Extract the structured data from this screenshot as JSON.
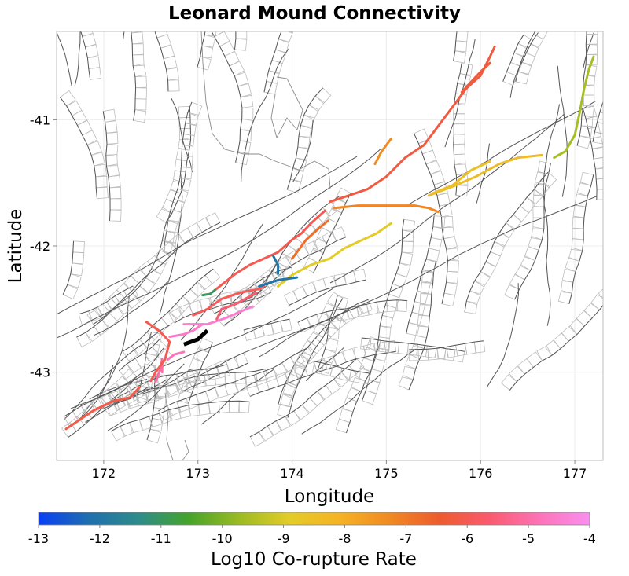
{
  "title": "Leonard Mound Connectivity",
  "xlabel": "Longitude",
  "ylabel": "Latitude",
  "x_ticks": [
    172,
    173,
    174,
    175,
    176,
    177
  ],
  "y_ticks": [
    -41,
    -42,
    -43
  ],
  "xlim": [
    171.5,
    177.3
  ],
  "ylim": [
    -43.7,
    -40.3
  ],
  "colorbar": {
    "label": "Log10 Co-rupture Rate",
    "ticks": [
      -13,
      -12,
      -11,
      -10,
      -9,
      -8,
      -7,
      -6,
      -5,
      -4
    ],
    "range": [
      -13,
      -4
    ],
    "stops": [
      "#0a3ef5",
      "#1f6fae",
      "#2e8c8a",
      "#46a32a",
      "#9bbb23",
      "#e3cc28",
      "#f5b324",
      "#f08a22",
      "#ee5b2e",
      "#fb5a6e",
      "#fd73b8",
      "#f88ff0"
    ]
  },
  "colors": {
    "background_fault": "#555555",
    "fault_box": "#bdbdbd",
    "coastline": "#8a8a8a",
    "target_fault": "#000000"
  },
  "chart_data": {
    "type": "map",
    "title": "Leonard Mound Connectivity",
    "xlabel": "Longitude",
    "ylabel": "Latitude",
    "target_fault": {
      "name": "Leonard Mound",
      "value_note": "target",
      "path": [
        [
          172.85,
          -42.78
        ],
        [
          173.0,
          -42.74
        ],
        [
          173.1,
          -42.67
        ]
      ]
    },
    "faults": [
      {
        "id": "f1",
        "log10_rate": -4.5,
        "path": [
          [
            172.85,
            -42.62
          ],
          [
            173.1,
            -42.62
          ],
          [
            173.3,
            -42.57
          ],
          [
            173.45,
            -42.52
          ],
          [
            173.58,
            -42.48
          ]
        ]
      },
      {
        "id": "f2",
        "log10_rate": -4.6,
        "path": [
          [
            172.7,
            -42.72
          ],
          [
            172.85,
            -42.7
          ],
          [
            172.95,
            -42.67
          ],
          [
            173.05,
            -42.62
          ]
        ]
      },
      {
        "id": "f3",
        "log10_rate": -4.8,
        "path": [
          [
            172.68,
            -42.9
          ],
          [
            172.75,
            -42.86
          ],
          [
            172.85,
            -42.84
          ]
        ]
      },
      {
        "id": "f4",
        "log10_rate": -5.0,
        "path": [
          [
            172.62,
            -42.9
          ],
          [
            172.62,
            -43.0
          ]
        ]
      },
      {
        "id": "f5",
        "log10_rate": -5.1,
        "path": [
          [
            172.55,
            -43.08
          ],
          [
            172.6,
            -42.98
          ],
          [
            172.62,
            -42.9
          ]
        ]
      },
      {
        "id": "f6",
        "log10_rate": -5.6,
        "path": [
          [
            173.2,
            -42.58
          ],
          [
            173.25,
            -42.5
          ],
          [
            173.4,
            -42.46
          ],
          [
            173.55,
            -42.4
          ],
          [
            173.62,
            -42.37
          ]
        ]
      },
      {
        "id": "f7",
        "log10_rate": -5.9,
        "path": [
          [
            172.95,
            -42.55
          ],
          [
            173.1,
            -42.5
          ],
          [
            173.25,
            -42.42
          ],
          [
            173.45,
            -42.37
          ],
          [
            173.65,
            -42.34
          ],
          [
            173.7,
            -42.32
          ]
        ]
      },
      {
        "id": "f8",
        "log10_rate": -6.0,
        "path": [
          [
            172.45,
            -42.6
          ],
          [
            172.6,
            -42.68
          ],
          [
            172.7,
            -42.76
          ],
          [
            172.65,
            -42.9
          ],
          [
            172.55,
            -43.0
          ],
          [
            172.5,
            -43.07
          ]
        ]
      },
      {
        "id": "f9",
        "log10_rate": -6.1,
        "path": [
          [
            171.6,
            -43.45
          ],
          [
            171.9,
            -43.3
          ],
          [
            172.1,
            -43.23
          ],
          [
            172.28,
            -43.2
          ],
          [
            172.38,
            -43.12
          ]
        ]
      },
      {
        "id": "f10",
        "log10_rate": -6.0,
        "path": [
          [
            173.18,
            -42.35
          ],
          [
            173.4,
            -42.22
          ],
          [
            173.55,
            -42.15
          ],
          [
            173.7,
            -42.1
          ],
          [
            173.85,
            -42.05
          ]
        ]
      },
      {
        "id": "f11",
        "log10_rate": -6.0,
        "path": [
          [
            173.85,
            -42.05
          ],
          [
            174.0,
            -41.95
          ],
          [
            174.1,
            -41.9
          ],
          [
            174.2,
            -41.82
          ],
          [
            174.35,
            -41.72
          ]
        ]
      },
      {
        "id": "f12",
        "log10_rate": -6.2,
        "path": [
          [
            174.4,
            -41.65
          ],
          [
            174.6,
            -41.6
          ],
          [
            174.8,
            -41.55
          ],
          [
            175.0,
            -41.45
          ],
          [
            175.2,
            -41.3
          ],
          [
            175.4,
            -41.2
          ],
          [
            175.55,
            -41.05
          ],
          [
            175.7,
            -40.9
          ],
          [
            175.85,
            -40.75
          ],
          [
            176.0,
            -40.65
          ],
          [
            176.1,
            -40.5
          ],
          [
            176.15,
            -40.42
          ]
        ]
      },
      {
        "id": "f13",
        "log10_rate": -6.3,
        "path": [
          [
            175.8,
            -40.78
          ],
          [
            175.9,
            -40.7
          ],
          [
            176.0,
            -40.62
          ],
          [
            176.1,
            -40.55
          ]
        ]
      },
      {
        "id": "f14",
        "log10_rate": -6.8,
        "path": [
          [
            174.0,
            -42.1
          ],
          [
            174.15,
            -41.95
          ],
          [
            174.3,
            -41.85
          ],
          [
            174.38,
            -41.8
          ]
        ]
      },
      {
        "id": "f15",
        "log10_rate": -7.2,
        "path": [
          [
            174.45,
            -41.7
          ],
          [
            174.7,
            -41.68
          ],
          [
            175.0,
            -41.68
          ],
          [
            175.3,
            -41.68
          ],
          [
            175.45,
            -41.7
          ],
          [
            175.55,
            -41.73
          ]
        ]
      },
      {
        "id": "f16",
        "log10_rate": -7.3,
        "path": [
          [
            174.88,
            -41.35
          ],
          [
            174.95,
            -41.25
          ],
          [
            175.05,
            -41.15
          ]
        ]
      },
      {
        "id": "f17",
        "log10_rate": -8.4,
        "path": [
          [
            175.45,
            -41.6
          ],
          [
            175.7,
            -41.53
          ],
          [
            175.95,
            -41.45
          ],
          [
            176.2,
            -41.35
          ],
          [
            176.4,
            -41.3
          ],
          [
            176.65,
            -41.28
          ]
        ]
      },
      {
        "id": "f18",
        "log10_rate": -8.5,
        "path": [
          [
            175.5,
            -41.58
          ],
          [
            175.7,
            -41.52
          ],
          [
            175.9,
            -41.4
          ],
          [
            176.1,
            -41.33
          ]
        ]
      },
      {
        "id": "f19",
        "log10_rate": -8.9,
        "path": [
          [
            173.85,
            -42.32
          ],
          [
            174.0,
            -42.23
          ],
          [
            174.2,
            -42.15
          ],
          [
            174.4,
            -42.1
          ],
          [
            174.55,
            -42.02
          ],
          [
            174.75,
            -41.95
          ],
          [
            174.9,
            -41.9
          ],
          [
            175.05,
            -41.82
          ]
        ]
      },
      {
        "id": "f20",
        "log10_rate": -9.6,
        "path": [
          [
            176.78,
            -41.3
          ],
          [
            176.9,
            -41.25
          ],
          [
            177.0,
            -41.12
          ],
          [
            177.05,
            -40.95
          ],
          [
            177.1,
            -40.75
          ],
          [
            177.15,
            -40.6
          ],
          [
            177.2,
            -40.5
          ]
        ]
      },
      {
        "id": "f21",
        "log10_rate": -12.0,
        "path": [
          [
            173.65,
            -42.32
          ],
          [
            173.85,
            -42.27
          ],
          [
            174.05,
            -42.25
          ]
        ]
      },
      {
        "id": "f22",
        "log10_rate": -12.0,
        "path": [
          [
            173.8,
            -42.08
          ],
          [
            173.85,
            -42.15
          ],
          [
            173.85,
            -42.22
          ]
        ]
      },
      {
        "id": "f23",
        "log10_rate": -11.0,
        "path": [
          [
            173.05,
            -42.39
          ],
          [
            173.13,
            -42.38
          ],
          [
            173.18,
            -42.35
          ]
        ]
      }
    ]
  }
}
